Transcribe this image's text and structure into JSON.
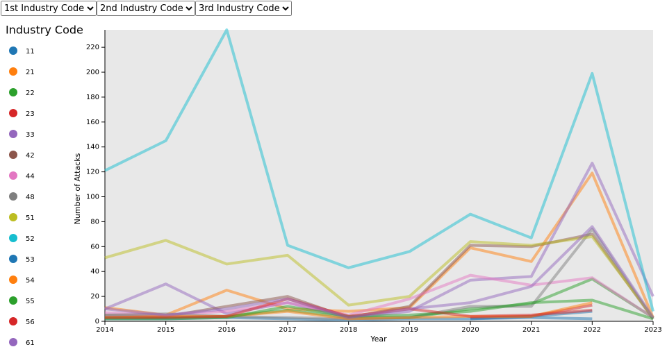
{
  "controls": [
    "1st Industry Code",
    "2nd Industry Code",
    "3rd Industry Code"
  ],
  "chart_data": {
    "type": "line",
    "legend_title": "Industry Code",
    "x_label": "Year",
    "y_label": "Number of Attacks",
    "x": [
      2014,
      2015,
      2016,
      2017,
      2018,
      2019,
      2020,
      2021,
      2022,
      2023
    ],
    "xlim": [
      2014,
      2023
    ],
    "xticks": [
      2014,
      2015,
      2016,
      2017,
      2018,
      2019,
      2020,
      2021,
      2022,
      2023
    ],
    "ylim": [
      0,
      234
    ],
    "yticks": [
      0,
      20,
      40,
      60,
      80,
      100,
      120,
      140,
      160,
      180,
      200,
      220
    ],
    "series": [
      {
        "name": "11",
        "color": "#1f77b4",
        "values": [
          2,
          2,
          3,
          2,
          1,
          2,
          2,
          3,
          2,
          null
        ]
      },
      {
        "name": "21",
        "color": "#ff7f0e",
        "values": [
          11,
          5,
          25,
          10,
          8,
          11,
          59,
          48,
          119,
          3
        ]
      },
      {
        "name": "22",
        "color": "#2ca02c",
        "values": [
          3,
          3,
          4,
          9,
          3,
          3,
          10,
          14,
          34,
          3
        ]
      },
      {
        "name": "23",
        "color": "#d62728",
        "values": [
          null,
          null,
          null,
          null,
          null,
          null,
          3,
          4,
          13,
          null
        ]
      },
      {
        "name": "33",
        "color": "#9467bd",
        "values": [
          10,
          30,
          6,
          15,
          3,
          8,
          33,
          36,
          127,
          20
        ]
      },
      {
        "name": "42",
        "color": "#8c564b",
        "values": [
          5,
          4,
          12,
          20,
          3,
          12,
          61,
          60,
          70,
          2
        ]
      },
      {
        "name": "44",
        "color": "#e377c2",
        "values": [
          7,
          5,
          8,
          15,
          5,
          18,
          37,
          29,
          35,
          3
        ]
      },
      {
        "name": "48",
        "color": "#7f7f7f",
        "values": [
          5,
          6,
          4,
          3,
          2,
          3,
          12,
          12,
          74,
          2
        ]
      },
      {
        "name": "51",
        "color": "#bcbd22",
        "values": [
          51,
          65,
          46,
          53,
          13,
          20,
          64,
          61,
          68,
          3
        ]
      },
      {
        "name": "52",
        "color": "#17becf",
        "values": [
          121,
          145,
          234,
          61,
          43,
          56,
          86,
          67,
          199,
          8
        ]
      },
      {
        "name": "53",
        "color": "#1f77b4",
        "values": [
          null,
          null,
          null,
          null,
          null,
          null,
          2,
          4,
          8,
          null
        ]
      },
      {
        "name": "54",
        "color": "#ff7f0e",
        "values": [
          3,
          4,
          4,
          8,
          2,
          3,
          4,
          4,
          15,
          null
        ]
      },
      {
        "name": "55",
        "color": "#2ca02c",
        "values": [
          2,
          2,
          3,
          12,
          4,
          5,
          8,
          15,
          17,
          2
        ]
      },
      {
        "name": "56",
        "color": "#d62728",
        "values": [
          3,
          3,
          4,
          18,
          4,
          10,
          4,
          5,
          9,
          null
        ]
      },
      {
        "name": "61",
        "color": "#9467bd",
        "values": [
          10,
          5,
          10,
          18,
          3,
          10,
          15,
          28,
          76,
          3
        ]
      }
    ]
  }
}
